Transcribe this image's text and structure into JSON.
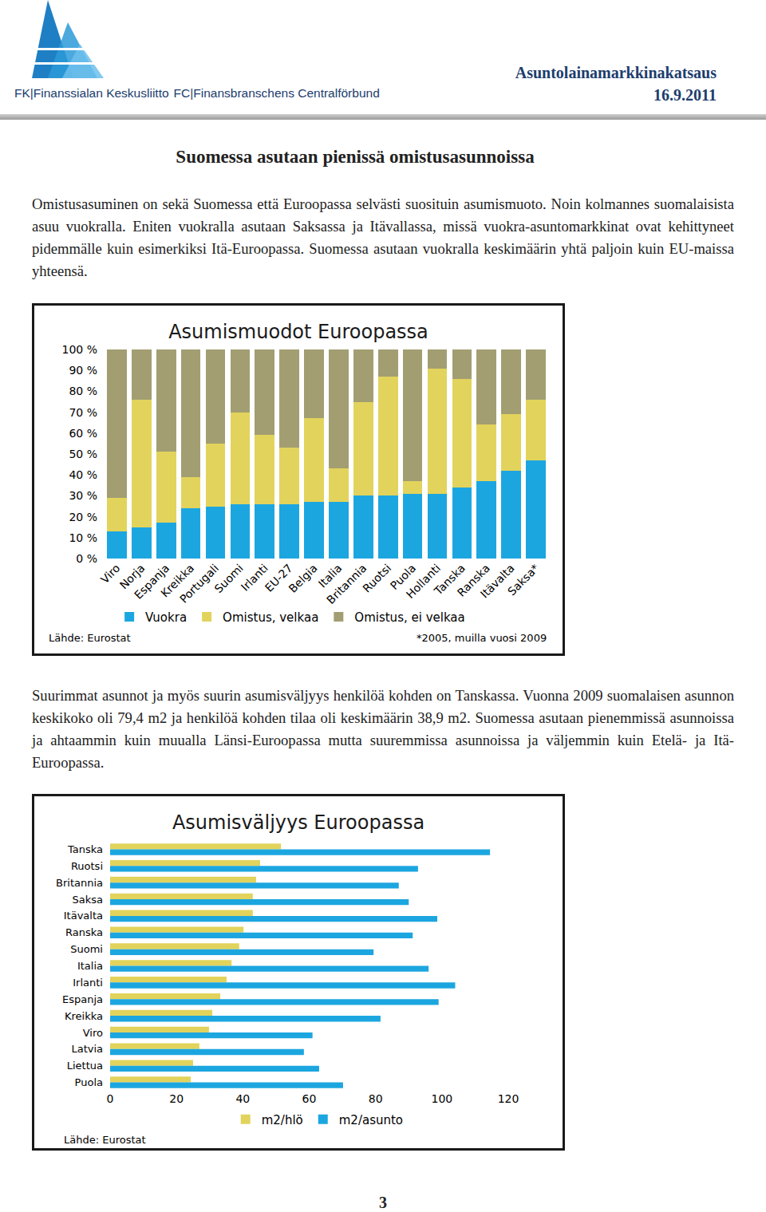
{
  "header": {
    "organization": [
      "FK|Finanssialan Keskusliitto",
      "FC|Finansbranschens Centralförbund"
    ],
    "publication": "Asuntolainamarkkinakatsaus",
    "date": "16.9.2011"
  },
  "heading": "Suomessa asutaan pienissä omistusasunnoissa",
  "paragraphs": [
    "Omistusasuminen on sekä Suomessa että Euroopassa selvästi suosituin asumismuoto. Noin kolmannes suomalaisista asuu vuokralla. Eniten vuokralla asutaan Saksassa ja Itävallassa, missä vuokra-asuntomarkkinat ovat kehittyneet pidemmälle kuin esimerkiksi Itä-Euroopassa. Suomessa asutaan vuokralla keskimäärin yhtä paljoin kuin EU-maissa yhteensä.",
    "Suurimmat asunnot ja myös suurin asumisväljyys henkilöä kohden on Tanskassa. Vuonna 2009 suomalaisen asunnon keskikoko oli 79,4 m2 ja henkilöä kohden tilaa oli keskimäärin 38,9 m2. Suomessa asutaan pienemmissä asunnoissa ja ahtaammin kuin muualla Länsi-Euroopassa mutta suuremmissa asunnoissa ja väljemmin kuin Etelä- ja Itä-Euroopassa."
  ],
  "chart_data": [
    {
      "type": "bar",
      "stacked": true,
      "title": "Asumismuodot Euroopassa",
      "categories": [
        "Viro",
        "Norja",
        "Espanja",
        "Kreikka",
        "Portugali",
        "Suomi",
        "Irlanti",
        "EU-27",
        "Belgia",
        "Italia",
        "Britannia",
        "Ruotsi",
        "Puola",
        "Hollanti",
        "Tanska",
        "Ranska",
        "Itävalta",
        "Saksa*"
      ],
      "series": [
        {
          "name": "Vuokra",
          "color": "#1ca6e0",
          "values": [
            13,
            15,
            17,
            24,
            25,
            26,
            26,
            26,
            27,
            27,
            30,
            30,
            31,
            31,
            34,
            37,
            42,
            47
          ]
        },
        {
          "name": "Omistus, velkaa",
          "color": "#e2d35c",
          "values": [
            16,
            61,
            34,
            15,
            30,
            44,
            33,
            27,
            40,
            16,
            45,
            57,
            6,
            60,
            52,
            27,
            27,
            29
          ]
        },
        {
          "name": "Omistus, ei velkaa",
          "color": "#a29e72",
          "values": [
            71,
            24,
            49,
            61,
            45,
            30,
            41,
            47,
            33,
            57,
            25,
            13,
            63,
            9,
            14,
            36,
            31,
            24
          ]
        }
      ],
      "ylim": [
        0,
        100
      ],
      "yticks": [
        {
          "value": 0,
          "label": "0 %"
        },
        {
          "value": 10,
          "label": "10 %"
        },
        {
          "value": 20,
          "label": "20 %"
        },
        {
          "value": 30,
          "label": "30 %"
        },
        {
          "value": 40,
          "label": "40 %"
        },
        {
          "value": 50,
          "label": "50 %"
        },
        {
          "value": 60,
          "label": "60 %"
        },
        {
          "value": 70,
          "label": "70 %"
        },
        {
          "value": 80,
          "label": "80 %"
        },
        {
          "value": 90,
          "label": "90 %"
        },
        {
          "value": 100,
          "label": "100 %"
        }
      ],
      "grid": false,
      "legend": "bottom",
      "source": "Lähde: Eurostat",
      "footnote": "*2005, muilla vuosi 2009"
    },
    {
      "type": "bar",
      "orientation": "horizontal",
      "title": "Asumisväljyys Euroopassa",
      "categories": [
        "Tanska",
        "Ruotsi",
        "Britannia",
        "Saksa",
        "Itävalta",
        "Ranska",
        "Suomi",
        "Italia",
        "Irlanti",
        "Espanja",
        "Kreikka",
        "Viro",
        "Latvia",
        "Liettua",
        "Puola"
      ],
      "series": [
        {
          "name": "m2/hlö",
          "color": "#e2d35c",
          "values": [
            51.5,
            45.2,
            44,
            43,
            43,
            40.2,
            38.9,
            36.6,
            35.1,
            33.2,
            30.8,
            29.8,
            26.9,
            25,
            24.3
          ]
        },
        {
          "name": "m2/asunto",
          "color": "#1ca6e0",
          "values": [
            114.5,
            92.8,
            87,
            90,
            98.6,
            91.2,
            79.4,
            96,
            104,
            99,
            81.5,
            61,
            58.4,
            63,
            70.2
          ]
        }
      ],
      "xlim": [
        0,
        120
      ],
      "xticks": [
        0,
        20,
        40,
        60,
        80,
        100,
        120
      ],
      "grid": false,
      "legend": "bottom",
      "source": "Lähde: Eurostat"
    }
  ],
  "page_number": 3
}
